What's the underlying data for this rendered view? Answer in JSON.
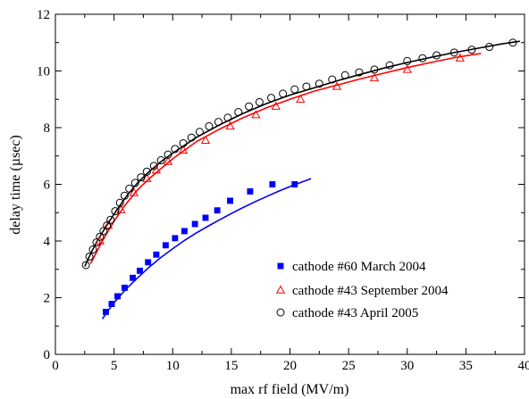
{
  "chart_data": {
    "type": "scatter",
    "xlabel": "max rf field (MV/m)",
    "ylabel": "delay time (µsec)",
    "xlim": [
      0,
      40
    ],
    "ylim": [
      0,
      12
    ],
    "xticks": [
      0,
      5,
      10,
      15,
      20,
      25,
      30,
      35,
      40
    ],
    "yticks": [
      0,
      2,
      4,
      6,
      8,
      10,
      12
    ],
    "grid": false,
    "legend_position": "bottom-right",
    "series": [
      {
        "name": "cathode #60 March 2004",
        "marker": "filled-square",
        "color": "#0000ff",
        "x": [
          4.3,
          4.8,
          5.3,
          5.9,
          6.6,
          7.2,
          7.9,
          8.6,
          9.4,
          10.2,
          11.0,
          11.9,
          12.8,
          13.8,
          14.9,
          16.6,
          18.5,
          20.4
        ],
        "y": [
          1.5,
          1.78,
          2.05,
          2.35,
          2.7,
          2.95,
          3.25,
          3.52,
          3.85,
          4.1,
          4.35,
          4.6,
          4.82,
          5.08,
          5.42,
          5.75,
          6.0,
          6.0
        ],
        "fit": {
          "x": [
            4.0,
            4.5,
            5.0,
            6.0,
            7.0,
            8.0,
            9.0,
            10.0,
            11.0,
            12.0,
            13.0,
            14.0,
            15.0,
            16.0,
            17.0,
            18.0,
            19.0,
            20.0,
            21.0,
            21.8
          ],
          "y": [
            1.25,
            1.55,
            1.82,
            2.3,
            2.7,
            3.08,
            3.42,
            3.73,
            4.02,
            4.28,
            4.52,
            4.75,
            4.97,
            5.18,
            5.38,
            5.57,
            5.75,
            5.92,
            6.08,
            6.2
          ]
        }
      },
      {
        "name": "cathode #43 September 2004",
        "marker": "open-triangle",
        "color": "#ff0000",
        "x": [
          3.8,
          4.5,
          5.6,
          6.7,
          7.8,
          8.6,
          9.6,
          10.9,
          12.8,
          14.9,
          17.1,
          18.8,
          20.9,
          24.0,
          27.2,
          30.0,
          34.5
        ],
        "y": [
          4.0,
          4.55,
          5.1,
          5.7,
          6.2,
          6.5,
          6.8,
          7.2,
          7.55,
          8.05,
          8.45,
          8.75,
          9.0,
          9.45,
          9.75,
          10.05,
          10.45
        ],
        "fit": {
          "x": [
            3.0,
            3.5,
            4.0,
            5.0,
            6.0,
            7.0,
            8.0,
            9.0,
            10.0,
            12.0,
            14.0,
            16.0,
            18.0,
            20.0,
            22.0,
            24.0,
            26.0,
            28.0,
            30.0,
            32.0,
            34.0,
            36.3
          ],
          "y": [
            3.2,
            3.6,
            4.0,
            4.7,
            5.3,
            5.8,
            6.2,
            6.55,
            6.9,
            7.5,
            7.95,
            8.35,
            8.7,
            9.0,
            9.28,
            9.5,
            9.72,
            9.92,
            10.12,
            10.3,
            10.47,
            10.62
          ]
        }
      },
      {
        "name": "cathode #43 April 2005",
        "marker": "open-circle",
        "color": "#000000",
        "x": [
          2.6,
          2.9,
          3.2,
          3.5,
          3.8,
          4.1,
          4.4,
          4.7,
          5.1,
          5.5,
          5.9,
          6.3,
          6.8,
          7.3,
          7.8,
          8.4,
          9.0,
          9.6,
          10.2,
          10.9,
          11.6,
          12.3,
          13.1,
          13.9,
          14.7,
          15.6,
          16.5,
          17.4,
          18.4,
          19.4,
          20.4,
          21.4,
          22.5,
          23.6,
          24.7,
          25.9,
          27.2,
          28.5,
          30.0,
          31.3,
          32.5,
          34.0,
          35.5,
          37.0,
          39.0
        ],
        "y": [
          3.15,
          3.45,
          3.7,
          3.95,
          4.15,
          4.35,
          4.55,
          4.75,
          5.05,
          5.35,
          5.6,
          5.85,
          6.05,
          6.25,
          6.45,
          6.65,
          6.85,
          7.05,
          7.25,
          7.45,
          7.65,
          7.85,
          8.05,
          8.2,
          8.35,
          8.55,
          8.75,
          8.9,
          9.05,
          9.2,
          9.35,
          9.45,
          9.55,
          9.7,
          9.85,
          9.95,
          10.05,
          10.2,
          10.35,
          10.45,
          10.55,
          10.65,
          10.75,
          10.85,
          11.0
        ]
      }
    ],
    "fit_black": {
      "x": [
        2.5,
        3.0,
        3.5,
        4.0,
        5.0,
        6.0,
        7.0,
        8.0,
        9.0,
        10.0,
        12.0,
        14.0,
        16.0,
        18.0,
        20.0,
        22.0,
        24.0,
        26.0,
        28.0,
        30.0,
        32.0,
        34.0,
        36.0,
        38.0,
        39.6
      ],
      "y": [
        3.1,
        3.55,
        3.95,
        4.3,
        4.95,
        5.55,
        6.05,
        6.45,
        6.8,
        7.1,
        7.65,
        8.1,
        8.5,
        8.85,
        9.15,
        9.4,
        9.65,
        9.88,
        10.1,
        10.3,
        10.48,
        10.65,
        10.8,
        10.95,
        11.05
      ]
    }
  }
}
